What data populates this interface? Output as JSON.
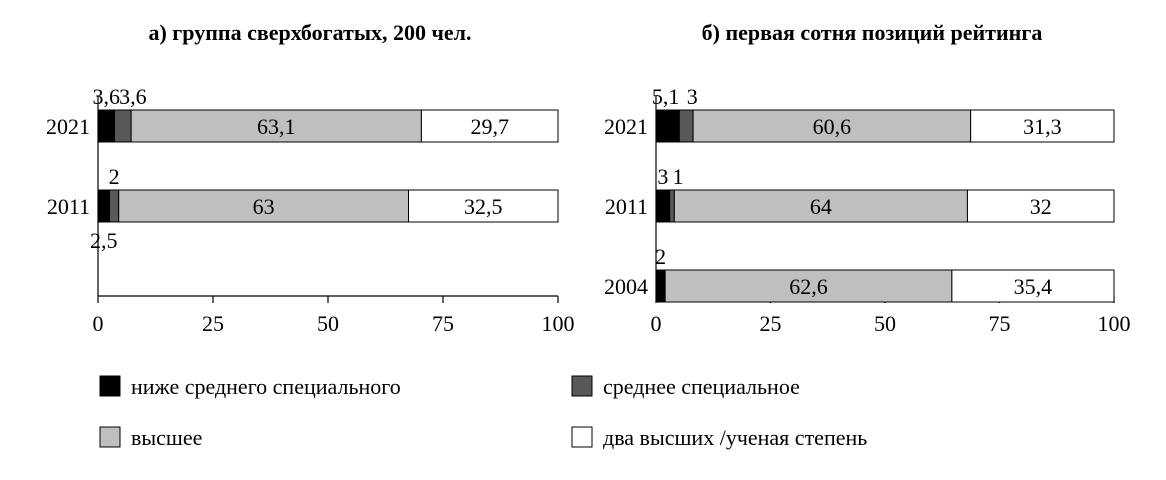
{
  "colors": {
    "below_secondary": "#000000",
    "secondary_special": "#595959",
    "higher": "#bfbfbf",
    "two_higher": "#ffffff",
    "stroke": "#000000"
  },
  "legend": {
    "placement": "bottom",
    "items": [
      {
        "key": "below_secondary",
        "label": "ниже среднего специального"
      },
      {
        "key": "secondary_special",
        "label": "среднее специальное"
      },
      {
        "key": "higher",
        "label": "высшее"
      },
      {
        "key": "two_higher",
        "label": "два высших /ученая степень"
      }
    ]
  },
  "chart_data": [
    {
      "type": "bar",
      "orientation": "horizontal",
      "stacked": true,
      "title": "а) группа сверхбогатых, 200 чел.",
      "xlim": [
        0,
        100
      ],
      "xticks": [
        "0",
        "25",
        "50",
        "75",
        "100"
      ],
      "categories": [
        "2021",
        "2011"
      ],
      "series": [
        {
          "name": "ниже среднего специального",
          "values": [
            3.6,
            2.5
          ],
          "labels": [
            "3,6",
            "2,5"
          ]
        },
        {
          "name": "среднее специальное",
          "values": [
            3.6,
            2
          ],
          "labels": [
            "3,6",
            "2"
          ]
        },
        {
          "name": "высшее",
          "values": [
            63.1,
            63
          ],
          "labels": [
            "63,1",
            "63"
          ]
        },
        {
          "name": "два высших /ученая степень",
          "values": [
            29.7,
            32.5
          ],
          "labels": [
            "29,7",
            "32,5"
          ]
        }
      ]
    },
    {
      "type": "bar",
      "orientation": "horizontal",
      "stacked": true,
      "title": "б) первая сотня позиций рейтинга",
      "xlim": [
        0,
        100
      ],
      "xticks": [
        "0",
        "25",
        "50",
        "75",
        "100"
      ],
      "categories": [
        "2021",
        "2011",
        "2004"
      ],
      "series": [
        {
          "name": "ниже среднего специального",
          "values": [
            5.1,
            3,
            2
          ],
          "labels": [
            "5,1",
            "3",
            "2"
          ]
        },
        {
          "name": "среднее специальное",
          "values": [
            3,
            1,
            0
          ],
          "labels": [
            "3",
            "1",
            ""
          ]
        },
        {
          "name": "высшее",
          "values": [
            60.6,
            64,
            62.6
          ],
          "labels": [
            "60,6",
            "64",
            "62,6"
          ]
        },
        {
          "name": "два высших /ученая степень",
          "values": [
            31.3,
            32,
            35.4
          ],
          "labels": [
            "31,3",
            "32",
            "35,4"
          ]
        }
      ]
    }
  ]
}
